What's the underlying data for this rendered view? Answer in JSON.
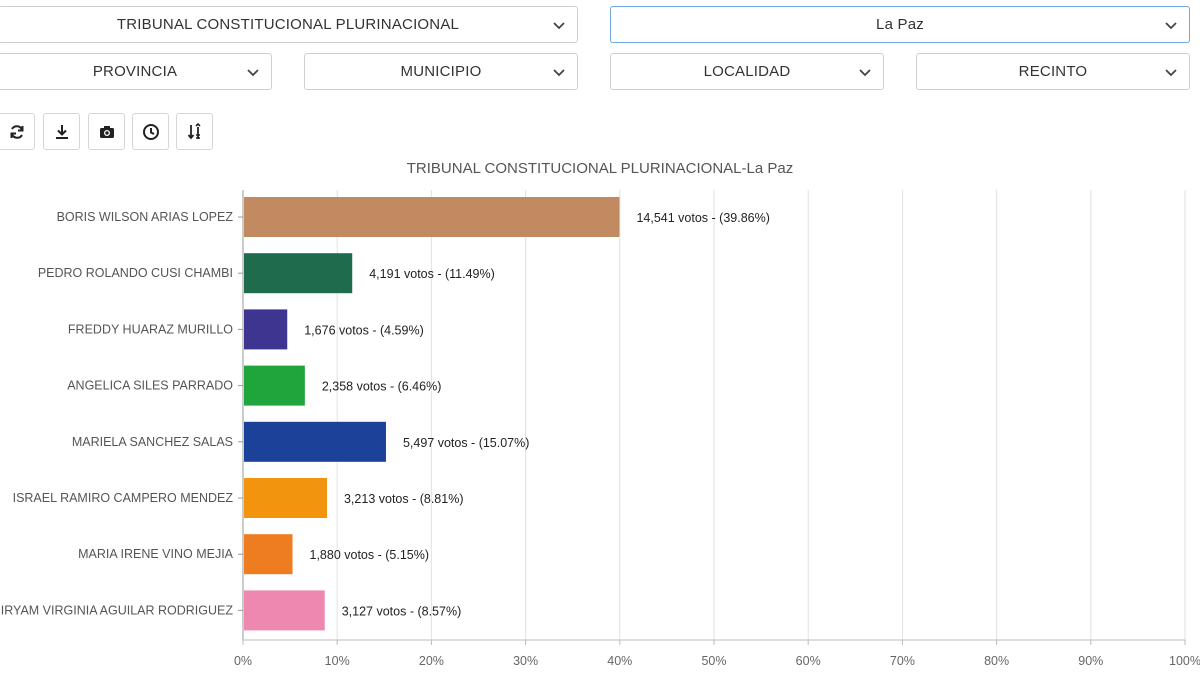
{
  "filters": {
    "election": "TRIBUNAL CONSTITUCIONAL PLURINACIONAL",
    "department": "La Paz",
    "province": "PROVINCIA",
    "municipality": "MUNICIPIO",
    "locality": "LOCALIDAD",
    "precinct": "RECINTO"
  },
  "toolbar": {
    "icons": [
      "refresh-icon",
      "download-icon",
      "camera-icon",
      "clock-icon",
      "sort-icon"
    ]
  },
  "chart_data": {
    "type": "bar",
    "orientation": "horizontal",
    "title": "TRIBUNAL CONSTITUCIONAL PLURINACIONAL-La Paz",
    "xlabel": "",
    "ylabel": "",
    "xlim": [
      0,
      100
    ],
    "x_ticks": [
      "0%",
      "10%",
      "20%",
      "30%",
      "40%",
      "50%",
      "60%",
      "70%",
      "80%",
      "90%",
      "100%"
    ],
    "grid": true,
    "categories": [
      "BORIS WILSON ARIAS LOPEZ",
      "PEDRO ROLANDO CUSI CHAMBI",
      "FREDDY HUARAZ MURILLO",
      "ANGELICA SILES PARRADO",
      "MARIELA SANCHEZ SALAS",
      "ISRAEL RAMIRO CAMPERO MENDEZ",
      "MARIA IRENE VINO MEJIA",
      "MIRYAM VIRGINIA AGUILAR RODRIGUEZ"
    ],
    "values": [
      39.86,
      11.49,
      4.59,
      6.46,
      15.07,
      8.81,
      5.15,
      8.57
    ],
    "votes": [
      14541,
      4191,
      1676,
      2358,
      5497,
      3213,
      1880,
      3127
    ],
    "labels": [
      "14,541 votos - (39.86%)",
      "4,191 votos - (11.49%)",
      "1,676 votos - (4.59%)",
      "2,358 votos - (6.46%)",
      "5,497 votos - (15.07%)",
      "3,213 votos - (8.81%)",
      "1,880 votos - (5.15%)",
      "3,127 votos - (8.57%)"
    ],
    "colors": [
      "#c28a61",
      "#1e6b4e",
      "#3e3590",
      "#1fa53c",
      "#1c4199",
      "#f2940e",
      "#ee7d21",
      "#ee88b1"
    ]
  }
}
